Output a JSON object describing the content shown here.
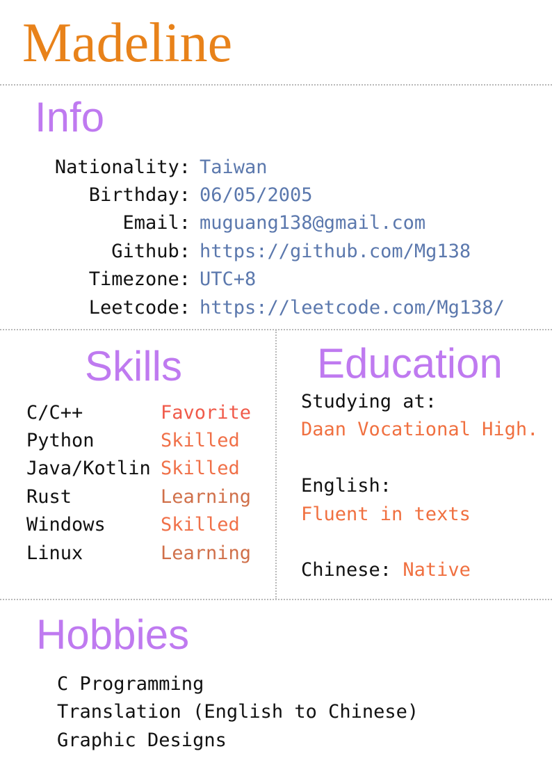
{
  "name": "Madeline",
  "colors": {
    "name": "#e8821a",
    "section_title": "#bf7af0",
    "info_value": "#5b78ad",
    "skill_favorite": "#f05a4a",
    "skill_skilled": "#f07048",
    "skill_learning": "#d0704a",
    "edu_value": "#f07040",
    "divider": "#b8b8b8"
  },
  "info": {
    "title": "Info",
    "rows": [
      {
        "label": "Nationality:",
        "value": "Taiwan"
      },
      {
        "label": "Birthday:",
        "value": "06/05/2005"
      },
      {
        "label": "Email:",
        "value": "muguang138@gmail.com"
      },
      {
        "label": "Github:",
        "value": "https://github.com/Mg138"
      },
      {
        "label": "Timezone:",
        "value": "UTC+8"
      },
      {
        "label": "Leetcode:",
        "value": "https://leetcode.com/Mg138/"
      }
    ]
  },
  "skills": {
    "title": "Skills",
    "rows": [
      {
        "name": "C/C++",
        "level": "Favorite"
      },
      {
        "name": "Python",
        "level": "Skilled"
      },
      {
        "name": "Java/Kotlin",
        "level": "Skilled"
      },
      {
        "name": "Rust",
        "level": "Learning"
      },
      {
        "name": "Windows",
        "level": "Skilled"
      },
      {
        "name": "Linux",
        "level": "Learning"
      }
    ]
  },
  "education": {
    "title": "Education",
    "studying_label": "Studying at:",
    "studying_value": "Daan Vocational High.",
    "english_label": "English:",
    "english_value": "Fluent in texts",
    "chinese_label": "Chinese:",
    "chinese_value": "Native"
  },
  "hobbies": {
    "title": "Hobbies",
    "items": [
      "C Programming",
      "Translation (English to Chinese)",
      "Graphic Designs"
    ]
  }
}
